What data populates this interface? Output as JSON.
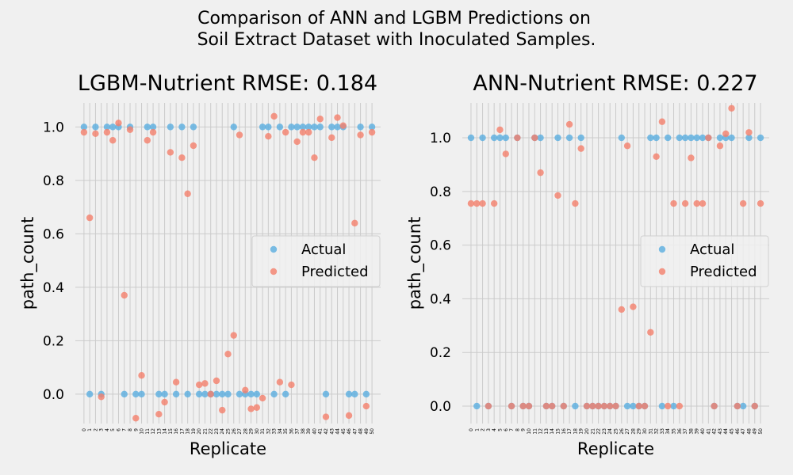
{
  "figure": {
    "suptitle_lines": [
      "Comparison of ANN and LGBM Predictions on",
      "Soil Extract Dataset with Inoculated Samples."
    ]
  },
  "colors": {
    "actual": "#5aaee0",
    "predicted": "#f4806b",
    "grid": "#cbcbcb",
    "background": "#f0f0f0"
  },
  "chart_data": [
    {
      "type": "scatter",
      "title": "LGBM-Nutrient RMSE: 0.184",
      "xlabel": "Replicate",
      "ylabel": "path_count",
      "xlim": [
        -1.5,
        51.5
      ],
      "ylim": [
        -0.11,
        1.09
      ],
      "yticks": [
        0.0,
        0.2,
        0.4,
        0.6,
        0.8,
        1.0
      ],
      "ytick_labels": [
        "0.0",
        "0.2",
        "0.4",
        "0.6",
        "0.8",
        "1.0"
      ],
      "x_tick_labels": [
        "0",
        "1",
        "2",
        "3",
        "4",
        "5",
        "6",
        "7",
        "8",
        "9",
        "10",
        "11",
        "12",
        "13",
        "14",
        "15",
        "16",
        "17",
        "18",
        "19",
        "20",
        "21",
        "22",
        "23",
        "24",
        "25",
        "26",
        "27",
        "28",
        "29",
        "30",
        "31",
        "32",
        "33",
        "34",
        "35",
        "36",
        "37",
        "38",
        "39",
        "40",
        "41",
        "42",
        "43",
        "44",
        "45",
        "46",
        "47",
        "48",
        "49",
        "50"
      ],
      "grid": true,
      "legend": {
        "position": "center-right",
        "entries": [
          "Actual",
          "Predicted"
        ]
      },
      "series": [
        {
          "name": "Actual",
          "x": [
            0,
            1,
            2,
            3,
            4,
            5,
            6,
            7,
            8,
            9,
            10,
            11,
            12,
            13,
            14,
            15,
            16,
            17,
            18,
            19,
            20,
            21,
            22,
            23,
            24,
            25,
            26,
            27,
            28,
            29,
            30,
            31,
            32,
            33,
            34,
            35,
            36,
            37,
            38,
            39,
            40,
            41,
            42,
            43,
            44,
            45,
            46,
            47,
            48,
            49,
            50
          ],
          "y": [
            1,
            0,
            1,
            0,
            1,
            1,
            1,
            0,
            1,
            0,
            0,
            1,
            1,
            0,
            0,
            1,
            0,
            1,
            0,
            1,
            0,
            0,
            0,
            0,
            0,
            0,
            1,
            0,
            0,
            0,
            0,
            1,
            1,
            0,
            1,
            0,
            1,
            1,
            1,
            1,
            1,
            1,
            0,
            1,
            1,
            1,
            0,
            0,
            1,
            0,
            1
          ]
        },
        {
          "name": "Predicted",
          "x": [
            0,
            1,
            2,
            3,
            4,
            5,
            6,
            7,
            8,
            9,
            10,
            11,
            12,
            13,
            14,
            15,
            16,
            17,
            18,
            19,
            20,
            21,
            22,
            23,
            24,
            25,
            26,
            27,
            28,
            29,
            30,
            31,
            32,
            33,
            34,
            35,
            36,
            37,
            38,
            39,
            40,
            41,
            42,
            43,
            44,
            45,
            46,
            47,
            48,
            49,
            50
          ],
          "y": [
            0.98,
            0.66,
            0.975,
            -0.01,
            0.98,
            0.95,
            1.015,
            0.37,
            0.99,
            -0.09,
            0.07,
            0.95,
            0.98,
            -0.075,
            -0.03,
            0.905,
            0.045,
            0.885,
            0.75,
            0.93,
            0.035,
            0.04,
            0.0,
            0.05,
            -0.06,
            0.15,
            0.22,
            0.97,
            0.015,
            -0.055,
            -0.05,
            -0.015,
            0.965,
            1.04,
            0.045,
            0.98,
            0.035,
            0.945,
            0.98,
            0.98,
            0.885,
            1.03,
            -0.085,
            0.96,
            1.035,
            1.005,
            -0.08,
            0.64,
            0.97,
            -0.045,
            0.98
          ]
        }
      ]
    },
    {
      "type": "scatter",
      "title": "ANN-Nutrient RMSE: 0.227",
      "xlabel": "Replicate",
      "ylabel": "path_count",
      "xlim": [
        -1.5,
        51.5
      ],
      "ylim": [
        -0.065,
        1.13
      ],
      "yticks": [
        0.0,
        0.2,
        0.4,
        0.6,
        0.8,
        1.0
      ],
      "ytick_labels": [
        "0.0",
        "0.2",
        "0.4",
        "0.6",
        "0.8",
        "1.0"
      ],
      "x_tick_labels": [
        "0",
        "1",
        "2",
        "3",
        "4",
        "5",
        "6",
        "7",
        "8",
        "9",
        "10",
        "11",
        "12",
        "13",
        "14",
        "15",
        "16",
        "17",
        "18",
        "19",
        "20",
        "21",
        "22",
        "23",
        "24",
        "25",
        "26",
        "27",
        "28",
        "29",
        "30",
        "31",
        "32",
        "33",
        "34",
        "35",
        "36",
        "37",
        "38",
        "39",
        "40",
        "41",
        "42",
        "43",
        "44",
        "45",
        "46",
        "47",
        "48",
        "49",
        "50"
      ],
      "grid": true,
      "legend": {
        "position": "center-right",
        "entries": [
          "Actual",
          "Predicted"
        ]
      },
      "series": [
        {
          "name": "Actual",
          "x": [
            0,
            1,
            2,
            3,
            4,
            5,
            6,
            7,
            8,
            9,
            10,
            11,
            12,
            13,
            14,
            15,
            16,
            17,
            18,
            19,
            20,
            21,
            22,
            23,
            24,
            25,
            26,
            27,
            28,
            29,
            30,
            31,
            32,
            33,
            34,
            35,
            36,
            37,
            38,
            39,
            40,
            41,
            42,
            43,
            44,
            45,
            46,
            47,
            48,
            49,
            50
          ],
          "y": [
            1,
            0,
            1,
            0,
            1,
            1,
            1,
            0,
            1,
            0,
            0,
            1,
            1,
            0,
            0,
            1,
            0,
            1,
            0,
            1,
            0,
            0,
            0,
            0,
            0,
            0,
            1,
            0,
            0,
            0,
            0,
            1,
            1,
            0,
            1,
            0,
            1,
            1,
            1,
            1,
            1,
            1,
            0,
            1,
            1,
            1,
            0,
            0,
            1,
            0,
            1
          ]
        },
        {
          "name": "Predicted",
          "x": [
            0,
            1,
            2,
            3,
            4,
            5,
            6,
            7,
            8,
            9,
            10,
            11,
            12,
            13,
            14,
            15,
            16,
            17,
            18,
            19,
            20,
            21,
            22,
            23,
            24,
            25,
            26,
            27,
            28,
            29,
            30,
            31,
            32,
            33,
            34,
            35,
            36,
            37,
            38,
            39,
            40,
            41,
            42,
            43,
            44,
            45,
            46,
            47,
            48,
            49,
            50
          ],
          "y": [
            0.755,
            0.755,
            0.755,
            0.0,
            0.755,
            1.03,
            0.94,
            0.0,
            1.0,
            0.0,
            0.0,
            1.0,
            0.87,
            0.0,
            0.0,
            0.785,
            0.0,
            1.05,
            0.755,
            0.96,
            0.0,
            0.0,
            0.0,
            0.0,
            0.0,
            0.0,
            0.36,
            0.97,
            0.37,
            0.0,
            0.0,
            0.275,
            0.93,
            1.06,
            0.0,
            0.755,
            0.0,
            0.755,
            0.925,
            0.755,
            0.755,
            1.0,
            0.0,
            0.97,
            1.015,
            1.11,
            0.0,
            0.755,
            1.02,
            0.0,
            0.755
          ]
        }
      ]
    }
  ]
}
